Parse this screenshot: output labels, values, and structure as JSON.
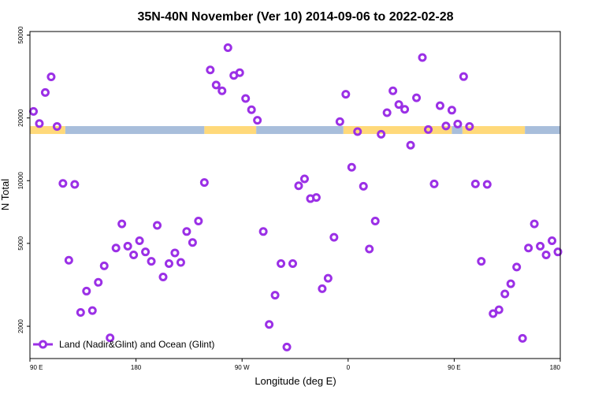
{
  "chart_data": {
    "type": "scatter",
    "title": "35N-40N November (Ver 10)   2014-09-06 to 2022-02-28",
    "xlabel": "Longitude (deg E)",
    "ylabel": "N Total",
    "y_scale": "log",
    "ylim": [
      1400,
      52000
    ],
    "y_ticks": [
      2000,
      5000,
      10000,
      20000,
      50000
    ],
    "y_tick_labels": [
      "2000",
      "5000",
      "10000",
      "20000",
      "50000"
    ],
    "x_ticks": [
      90,
      180,
      270,
      360,
      450,
      540
    ],
    "x_tick_labels": [
      "90 E",
      "180",
      "90 W",
      "0",
      "90 E",
      "180"
    ],
    "xlim": [
      90,
      540
    ],
    "grid": false,
    "legend": {
      "position": "bottom-left",
      "entries": [
        "Land (Nadir&Glint) and Ocean (Glint)"
      ]
    },
    "series": [
      {
        "name": "Land (Nadir&Glint) and Ocean (Glint)",
        "color": "#9b30e6",
        "x": [
          93,
          98,
          103,
          108,
          113,
          118,
          123,
          128,
          133,
          138,
          143,
          148,
          153,
          158,
          163,
          168,
          173,
          178,
          183,
          188,
          193,
          198,
          203,
          208,
          213,
          218,
          223,
          228,
          233,
          238,
          243,
          248,
          253,
          258,
          263,
          268,
          273,
          278,
          283,
          288,
          293,
          298,
          303,
          308,
          313,
          318,
          323,
          328,
          333,
          338,
          343,
          348,
          353,
          358,
          363,
          368,
          373,
          378,
          383,
          388,
          393,
          398,
          403,
          408,
          413,
          418,
          423,
          428,
          433,
          438,
          443,
          448,
          453,
          458,
          463,
          468,
          473,
          478,
          483,
          488,
          493,
          498,
          503,
          508,
          513,
          518,
          523,
          528,
          533,
          538
        ],
        "y": [
          21500,
          18800,
          26500,
          31500,
          18200,
          9700,
          4150,
          9600,
          2330,
          2950,
          2380,
          3250,
          3900,
          1760,
          4750,
          6200,
          4850,
          4400,
          5150,
          4550,
          4100,
          6100,
          3450,
          4000,
          4500,
          4050,
          5700,
          5050,
          6400,
          9800,
          34000,
          28800,
          27000,
          43500,
          32000,
          33000,
          24800,
          21900,
          19500,
          5700,
          2040,
          2820,
          4000,
          1590,
          4000,
          9450,
          10200,
          8200,
          8300,
          3030,
          3400,
          5350,
          19200,
          26000,
          11600,
          17200,
          9400,
          4700,
          6400,
          16700,
          21200,
          27000,
          23200,
          22000,
          14800,
          25000,
          39000,
          17600,
          9650,
          22900,
          18300,
          21800,
          18700,
          31600,
          18200,
          9650,
          4100,
          9600,
          2300,
          2400,
          2860,
          3200,
          3850,
          1750,
          4750,
          6200,
          4850,
          4400,
          5150,
          4550
        ]
      }
    ],
    "band": {
      "value": 17500,
      "segments": [
        {
          "type": "land",
          "from": 90,
          "to": 120,
          "color": "#ffd97a"
        },
        {
          "type": "ocean",
          "from": 120,
          "to": 238,
          "color": "#a8bedb"
        },
        {
          "type": "land",
          "from": 238,
          "to": 282,
          "color": "#ffd97a"
        },
        {
          "type": "ocean",
          "from": 282,
          "to": 356,
          "color": "#a8bedb"
        },
        {
          "type": "land",
          "from": 356,
          "to": 448,
          "color": "#ffd97a"
        },
        {
          "type": "ocean",
          "from": 448,
          "to": 457,
          "color": "#a8bedb"
        },
        {
          "type": "land",
          "from": 457,
          "to": 510,
          "color": "#ffd97a"
        },
        {
          "type": "ocean",
          "from": 510,
          "to": 540,
          "color": "#a8bedb"
        }
      ]
    }
  }
}
